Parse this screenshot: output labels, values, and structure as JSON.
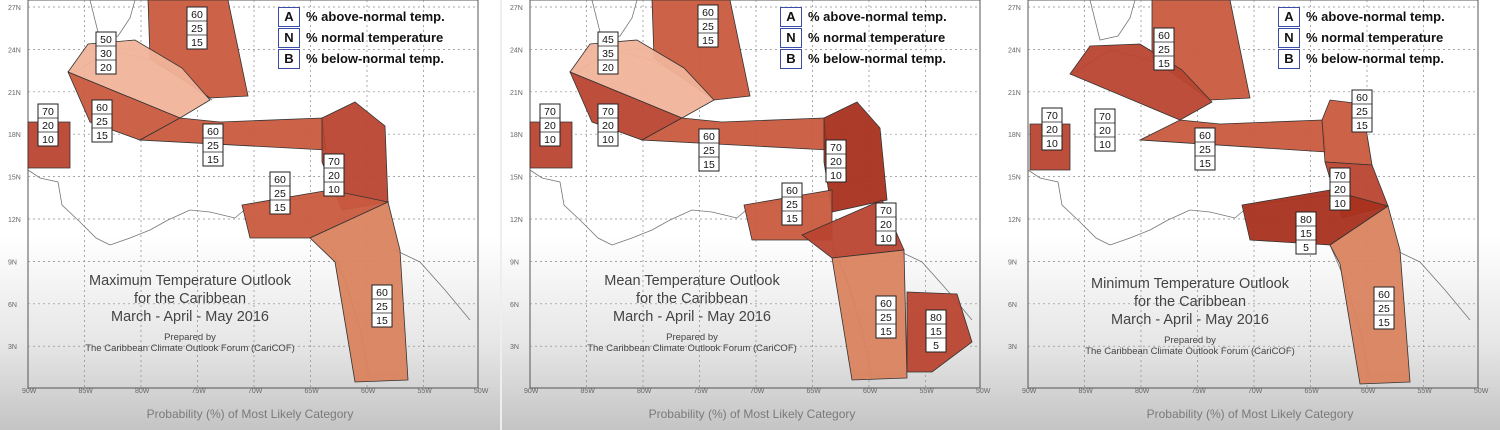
{
  "legend": [
    {
      "key": "A",
      "text": "% above-normal temp."
    },
    {
      "key": "N",
      "text": "% normal temperature"
    },
    {
      "key": "B",
      "text": "% below-normal temp."
    }
  ],
  "axes": {
    "lat_labels": [
      "27N",
      "24N",
      "21N",
      "18N",
      "15N",
      "12N",
      "9N",
      "6N",
      "3N"
    ],
    "lon_labels": [
      "90W",
      "85W",
      "80W",
      "75W",
      "70W",
      "65W",
      "60W",
      "55W",
      "50W"
    ]
  },
  "caption": "Probability (%) of Most Likely Category",
  "colors": {
    "deep": "#a8321e",
    "strong": "#b84530",
    "medium": "#c95a3e",
    "light": "#d9835e",
    "pale": "#f0b39a",
    "border": "#333333"
  },
  "maps": [
    {
      "title_lines": [
        "Maximum Temperature Outlook",
        "for the Caribbean",
        "March - April - May 2016"
      ],
      "prepared_lines": [
        "Prepared by",
        "The Caribbean Climate Outlook Forum (CariCOF)"
      ],
      "regions": [
        {
          "name": "bahamas",
          "prob": [
            60,
            25,
            15
          ],
          "shade": "medium"
        },
        {
          "name": "cuba",
          "prob": [
            50,
            30,
            20
          ],
          "shade": "pale"
        },
        {
          "name": "cayman-jamaica",
          "prob": [
            60,
            25,
            15
          ],
          "shade": "medium"
        },
        {
          "name": "belize",
          "prob": [
            70,
            20,
            10
          ],
          "shade": "strong"
        },
        {
          "name": "hispaniola-pr",
          "prob": [
            60,
            25,
            15
          ],
          "shade": "medium"
        },
        {
          "name": "leeward-islands",
          "prob": [
            70,
            20,
            10
          ],
          "shade": "strong"
        },
        {
          "name": "venezuela-coast",
          "prob": [
            60,
            25,
            15
          ],
          "shade": "medium"
        },
        {
          "name": "guianas",
          "prob": [
            60,
            25,
            15
          ],
          "shade": "light"
        }
      ]
    },
    {
      "title_lines": [
        "Mean Temperature Outlook",
        "for the Caribbean",
        "March - April - May 2016"
      ],
      "prepared_lines": [
        "Prepared by",
        "The Caribbean Climate Outlook Forum (CariCOF)"
      ],
      "regions": [
        {
          "name": "bahamas",
          "prob": [
            60,
            25,
            15
          ],
          "shade": "medium"
        },
        {
          "name": "cuba",
          "prob": [
            45,
            35,
            20
          ],
          "shade": "pale"
        },
        {
          "name": "cayman-jamaica",
          "prob": [
            70,
            20,
            10
          ],
          "shade": "strong"
        },
        {
          "name": "belize",
          "prob": [
            70,
            20,
            10
          ],
          "shade": "strong"
        },
        {
          "name": "hispaniola-pr",
          "prob": [
            60,
            25,
            15
          ],
          "shade": "medium"
        },
        {
          "name": "leeward-islands",
          "prob": [
            70,
            20,
            10
          ],
          "shade": "deep"
        },
        {
          "name": "venezuela-coast",
          "prob": [
            60,
            25,
            15
          ],
          "shade": "medium"
        },
        {
          "name": "trinidad-guyana",
          "prob": [
            70,
            20,
            10
          ],
          "shade": "strong"
        },
        {
          "name": "suriname",
          "prob": [
            60,
            25,
            15
          ],
          "shade": "light"
        },
        {
          "name": "french-guiana",
          "prob": [
            80,
            15,
            5
          ],
          "shade": "strong"
        }
      ]
    },
    {
      "title_lines": [
        "Minimum Temperature Outlook",
        "for the Caribbean",
        "March - April - May 2016"
      ],
      "prepared_lines": [
        "Prepared by",
        "The Caribbean Climate Outlook Forum (CariCOF)"
      ],
      "regions": [
        {
          "name": "bahamas",
          "prob": [
            60,
            25,
            15
          ],
          "shade": "medium"
        },
        {
          "name": "cuba",
          "prob": [
            70,
            20,
            10
          ],
          "shade": "strong"
        },
        {
          "name": "belize",
          "prob": [
            70,
            20,
            10
          ],
          "shade": "strong"
        },
        {
          "name": "hispaniola-pr",
          "prob": [
            60,
            25,
            15
          ],
          "shade": "medium"
        },
        {
          "name": "leeward-islands-north",
          "prob": [
            60,
            25,
            15
          ],
          "shade": "medium"
        },
        {
          "name": "leeward-islands",
          "prob": [
            70,
            20,
            10
          ],
          "shade": "strong"
        },
        {
          "name": "venezuela-coast",
          "prob": [
            80,
            15,
            5
          ],
          "shade": "deep"
        },
        {
          "name": "guianas",
          "prob": [
            60,
            25,
            15
          ],
          "shade": "light"
        }
      ]
    }
  ]
}
